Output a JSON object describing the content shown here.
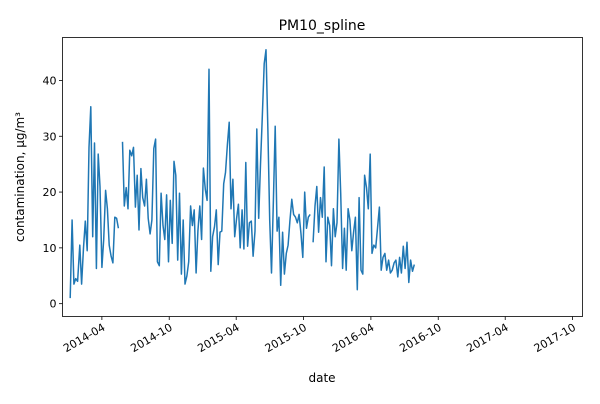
{
  "chart_data": {
    "type": "line",
    "title": "PM10_spline",
    "xlabel": "date",
    "ylabel": "contamination, μg/m³",
    "x_ticks": [
      "2014-04",
      "2014-10",
      "2015-04",
      "2015-10",
      "2016-04",
      "2016-10",
      "2017-04",
      "2017-10"
    ],
    "y_ticks": [
      0,
      10,
      20,
      30,
      40
    ],
    "xlim": [
      "2013-12-15",
      "2017-10-28"
    ],
    "ylim": [
      -2.3,
      47.7
    ],
    "grid": false,
    "legend": "none",
    "line_color": "#1f77b4",
    "series": [
      {
        "segments": [
          [
            [
              "2014-01-05",
              1.0
            ],
            [
              "2014-01-10",
              15.0
            ],
            [
              "2014-01-15",
              3.5
            ],
            [
              "2014-01-20",
              4.5
            ],
            [
              "2014-01-25",
              4.0
            ],
            [
              "2014-01-31",
              10.5
            ],
            [
              "2014-02-05",
              3.5
            ],
            [
              "2014-02-10",
              10.0
            ],
            [
              "2014-02-15",
              14.8
            ],
            [
              "2014-02-20",
              9.5
            ],
            [
              "2014-02-25",
              28.0
            ],
            [
              "2014-03-02",
              35.3
            ],
            [
              "2014-03-07",
              12.0
            ],
            [
              "2014-03-12",
              28.8
            ],
            [
              "2014-03-17",
              6.3
            ],
            [
              "2014-03-22",
              26.8
            ],
            [
              "2014-03-27",
              21.0
            ],
            [
              "2014-04-01",
              6.5
            ],
            [
              "2014-04-06",
              11.5
            ],
            [
              "2014-04-11",
              20.3
            ],
            [
              "2014-04-16",
              17.0
            ],
            [
              "2014-04-21",
              10.5
            ],
            [
              "2014-04-26",
              8.5
            ],
            [
              "2014-05-01",
              7.3
            ],
            [
              "2014-05-06",
              15.5
            ],
            [
              "2014-05-11",
              15.3
            ],
            [
              "2014-05-16",
              13.5
            ]
          ],
          [
            [
              "2014-05-27",
              29.0
            ],
            [
              "2014-06-01",
              17.5
            ],
            [
              "2014-06-06",
              20.8
            ],
            [
              "2014-06-11",
              17.0
            ],
            [
              "2014-06-16",
              27.5
            ],
            [
              "2014-06-21",
              26.5
            ],
            [
              "2014-06-26",
              28.0
            ],
            [
              "2014-07-01",
              17.3
            ],
            [
              "2014-07-06",
              23.0
            ],
            [
              "2014-07-11",
              13.2
            ],
            [
              "2014-07-16",
              24.2
            ],
            [
              "2014-07-21",
              19.0
            ],
            [
              "2014-07-26",
              17.5
            ],
            [
              "2014-07-31",
              22.3
            ],
            [
              "2014-08-05",
              15.3
            ],
            [
              "2014-08-10",
              12.5
            ],
            [
              "2014-08-15",
              15.0
            ],
            [
              "2014-08-20",
              27.8
            ],
            [
              "2014-08-25",
              29.5
            ],
            [
              "2014-08-30",
              7.5
            ],
            [
              "2014-09-04",
              6.8
            ],
            [
              "2014-09-09",
              19.8
            ],
            [
              "2014-09-14",
              14.0
            ],
            [
              "2014-09-19",
              11.5
            ],
            [
              "2014-09-24",
              19.5
            ],
            [
              "2014-09-29",
              7.5
            ],
            [
              "2014-10-04",
              18.5
            ],
            [
              "2014-10-09",
              10.8
            ],
            [
              "2014-10-14",
              25.5
            ],
            [
              "2014-10-19",
              23.0
            ],
            [
              "2014-10-24",
              7.8
            ],
            [
              "2014-10-29",
              19.8
            ],
            [
              "2014-11-03",
              5.3
            ],
            [
              "2014-11-08",
              15.0
            ],
            [
              "2014-11-13",
              3.5
            ],
            [
              "2014-11-18",
              5.0
            ],
            [
              "2014-11-23",
              7.5
            ],
            [
              "2014-11-28",
              17.5
            ],
            [
              "2014-12-03",
              14.0
            ],
            [
              "2014-12-08",
              16.8
            ],
            [
              "2014-12-13",
              5.5
            ],
            [
              "2014-12-18",
              13.0
            ],
            [
              "2014-12-23",
              17.5
            ],
            [
              "2014-12-28",
              11.5
            ],
            [
              "2015-01-02",
              24.3
            ],
            [
              "2015-01-07",
              20.5
            ],
            [
              "2015-01-12",
              18.5
            ],
            [
              "2015-01-17",
              42.0
            ],
            [
              "2015-01-22",
              5.8
            ],
            [
              "2015-01-27",
              12.0
            ],
            [
              "2015-02-01",
              13.8
            ],
            [
              "2015-02-06",
              16.8
            ],
            [
              "2015-02-11",
              7.0
            ],
            [
              "2015-02-16",
              12.8
            ],
            [
              "2015-02-21",
              13.0
            ],
            [
              "2015-02-26",
              21.5
            ],
            [
              "2015-03-03",
              23.5
            ],
            [
              "2015-03-08",
              28.5
            ],
            [
              "2015-03-13",
              32.5
            ],
            [
              "2015-03-18",
              17.0
            ],
            [
              "2015-03-23",
              22.3
            ],
            [
              "2015-03-28",
              12.0
            ],
            [
              "2015-04-02",
              15.3
            ],
            [
              "2015-04-07",
              17.8
            ],
            [
              "2015-04-12",
              10.0
            ],
            [
              "2015-04-17",
              16.8
            ],
            [
              "2015-04-22",
              9.8
            ],
            [
              "2015-04-27",
              25.3
            ],
            [
              "2015-05-02",
              10.3
            ],
            [
              "2015-05-07",
              14.5
            ],
            [
              "2015-05-12",
              14.8
            ],
            [
              "2015-05-17",
              8.5
            ],
            [
              "2015-05-22",
              13.0
            ],
            [
              "2015-05-27",
              31.3
            ],
            [
              "2015-06-01",
              15.3
            ],
            [
              "2015-06-06",
              25.0
            ],
            [
              "2015-06-11",
              33.5
            ],
            [
              "2015-06-16",
              43.0
            ],
            [
              "2015-06-21",
              45.5
            ],
            [
              "2015-06-26",
              31.0
            ],
            [
              "2015-07-01",
              15.0
            ],
            [
              "2015-07-06",
              5.5
            ],
            [
              "2015-07-11",
              18.5
            ],
            [
              "2015-07-16",
              31.8
            ],
            [
              "2015-07-21",
              13.0
            ],
            [
              "2015-07-26",
              15.5
            ],
            [
              "2015-07-31",
              3.3
            ],
            [
              "2015-08-05",
              12.8
            ],
            [
              "2015-08-10",
              5.3
            ],
            [
              "2015-08-15",
              9.0
            ],
            [
              "2015-08-20",
              10.5
            ],
            [
              "2015-08-25",
              14.8
            ],
            [
              "2015-08-30",
              18.7
            ],
            [
              "2015-09-04",
              16.0
            ],
            [
              "2015-09-09",
              15.5
            ],
            [
              "2015-09-14",
              14.5
            ],
            [
              "2015-09-19",
              16.0
            ],
            [
              "2015-09-24",
              12.5
            ],
            [
              "2015-09-29",
              8.3
            ],
            [
              "2015-10-04",
              20.0
            ],
            [
              "2015-10-09",
              13.5
            ],
            [
              "2015-10-14",
              15.5
            ],
            [
              "2015-10-19",
              16.0
            ]
          ],
          [
            [
              "2015-10-27",
              11.0
            ],
            [
              "2015-11-01",
              17.5
            ],
            [
              "2015-11-06",
              21.0
            ],
            [
              "2015-11-11",
              12.8
            ],
            [
              "2015-11-16",
              19.0
            ],
            [
              "2015-11-21",
              15.5
            ],
            [
              "2015-11-26",
              24.5
            ],
            [
              "2015-12-01",
              7.5
            ],
            [
              "2015-12-06",
              15.5
            ],
            [
              "2015-12-11",
              14.0
            ],
            [
              "2015-12-16",
              6.8
            ],
            [
              "2015-12-21",
              17.0
            ],
            [
              "2015-12-26",
              12.0
            ],
            [
              "2015-12-31",
              14.5
            ],
            [
              "2016-01-05",
              29.5
            ],
            [
              "2016-01-10",
              19.8
            ],
            [
              "2016-01-15",
              6.3
            ],
            [
              "2016-01-20",
              13.5
            ],
            [
              "2016-01-25",
              6.0
            ],
            [
              "2016-01-30",
              17.0
            ],
            [
              "2016-02-04",
              15.0
            ],
            [
              "2016-02-09",
              9.5
            ],
            [
              "2016-02-14",
              12.8
            ],
            [
              "2016-02-19",
              15.5
            ],
            [
              "2016-02-24",
              2.5
            ],
            [
              "2016-02-29",
              19.0
            ],
            [
              "2016-03-05",
              6.0
            ],
            [
              "2016-03-10",
              5.3
            ],
            [
              "2016-03-15",
              23.0
            ],
            [
              "2016-03-20",
              20.8
            ],
            [
              "2016-03-25",
              17.0
            ],
            [
              "2016-03-30",
              26.8
            ],
            [
              "2016-04-04",
              9.0
            ],
            [
              "2016-04-09",
              10.5
            ],
            [
              "2016-04-14",
              10.0
            ],
            [
              "2016-04-19",
              13.5
            ],
            [
              "2016-04-24",
              17.3
            ],
            [
              "2016-04-29",
              6.0
            ],
            [
              "2016-05-04",
              8.3
            ],
            [
              "2016-05-09",
              9.0
            ],
            [
              "2016-05-14",
              6.0
            ],
            [
              "2016-05-19",
              7.8
            ],
            [
              "2016-05-24",
              5.5
            ],
            [
              "2016-05-29",
              6.0
            ],
            [
              "2016-06-03",
              7.3
            ],
            [
              "2016-06-08",
              7.8
            ],
            [
              "2016-06-13",
              4.8
            ],
            [
              "2016-06-18",
              8.3
            ],
            [
              "2016-06-23",
              5.5
            ],
            [
              "2016-06-28",
              10.3
            ],
            [
              "2016-07-03",
              6.3
            ],
            [
              "2016-07-08",
              11.0
            ],
            [
              "2016-07-13",
              3.8
            ],
            [
              "2016-07-18",
              7.8
            ],
            [
              "2016-07-23",
              5.8
            ],
            [
              "2016-07-28",
              7.0
            ]
          ]
        ]
      }
    ]
  }
}
